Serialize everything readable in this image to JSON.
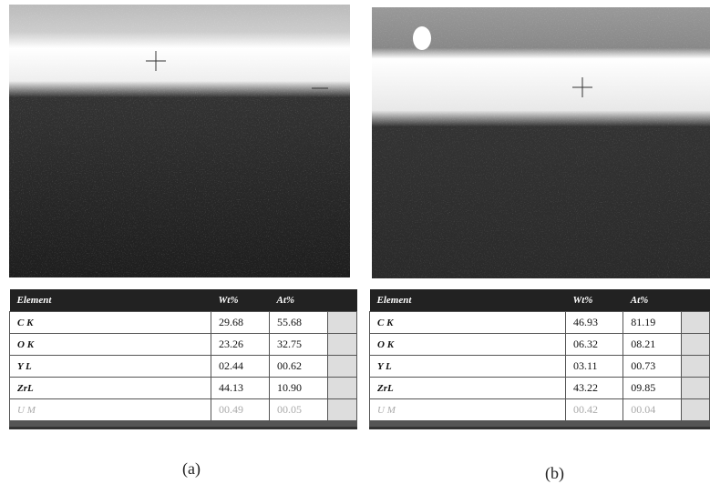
{
  "panels": [
    {
      "caption": "(a)",
      "table": {
        "header": [
          "Element",
          "Wt%",
          "At%"
        ],
        "rows": [
          [
            "C K",
            "29.68",
            "55.68"
          ],
          [
            "O K",
            "23.26",
            "32.75"
          ],
          [
            "Y L",
            "02.44",
            "00.62"
          ],
          [
            "ZrL",
            "44.13",
            "10.90"
          ],
          [
            "U M",
            "00.49",
            "00.05"
          ]
        ]
      }
    },
    {
      "caption": "(b)",
      "table": {
        "header": [
          "Element",
          "Wt%",
          "At%"
        ],
        "rows": [
          [
            "C K",
            "46.93",
            "81.19"
          ],
          [
            "O K",
            "06.32",
            "08.21"
          ],
          [
            "Y L",
            "03.11",
            "00.73"
          ],
          [
            "ZrL",
            "43.22",
            "09.85"
          ],
          [
            "U M",
            "00.42",
            "00.04"
          ]
        ]
      }
    }
  ]
}
